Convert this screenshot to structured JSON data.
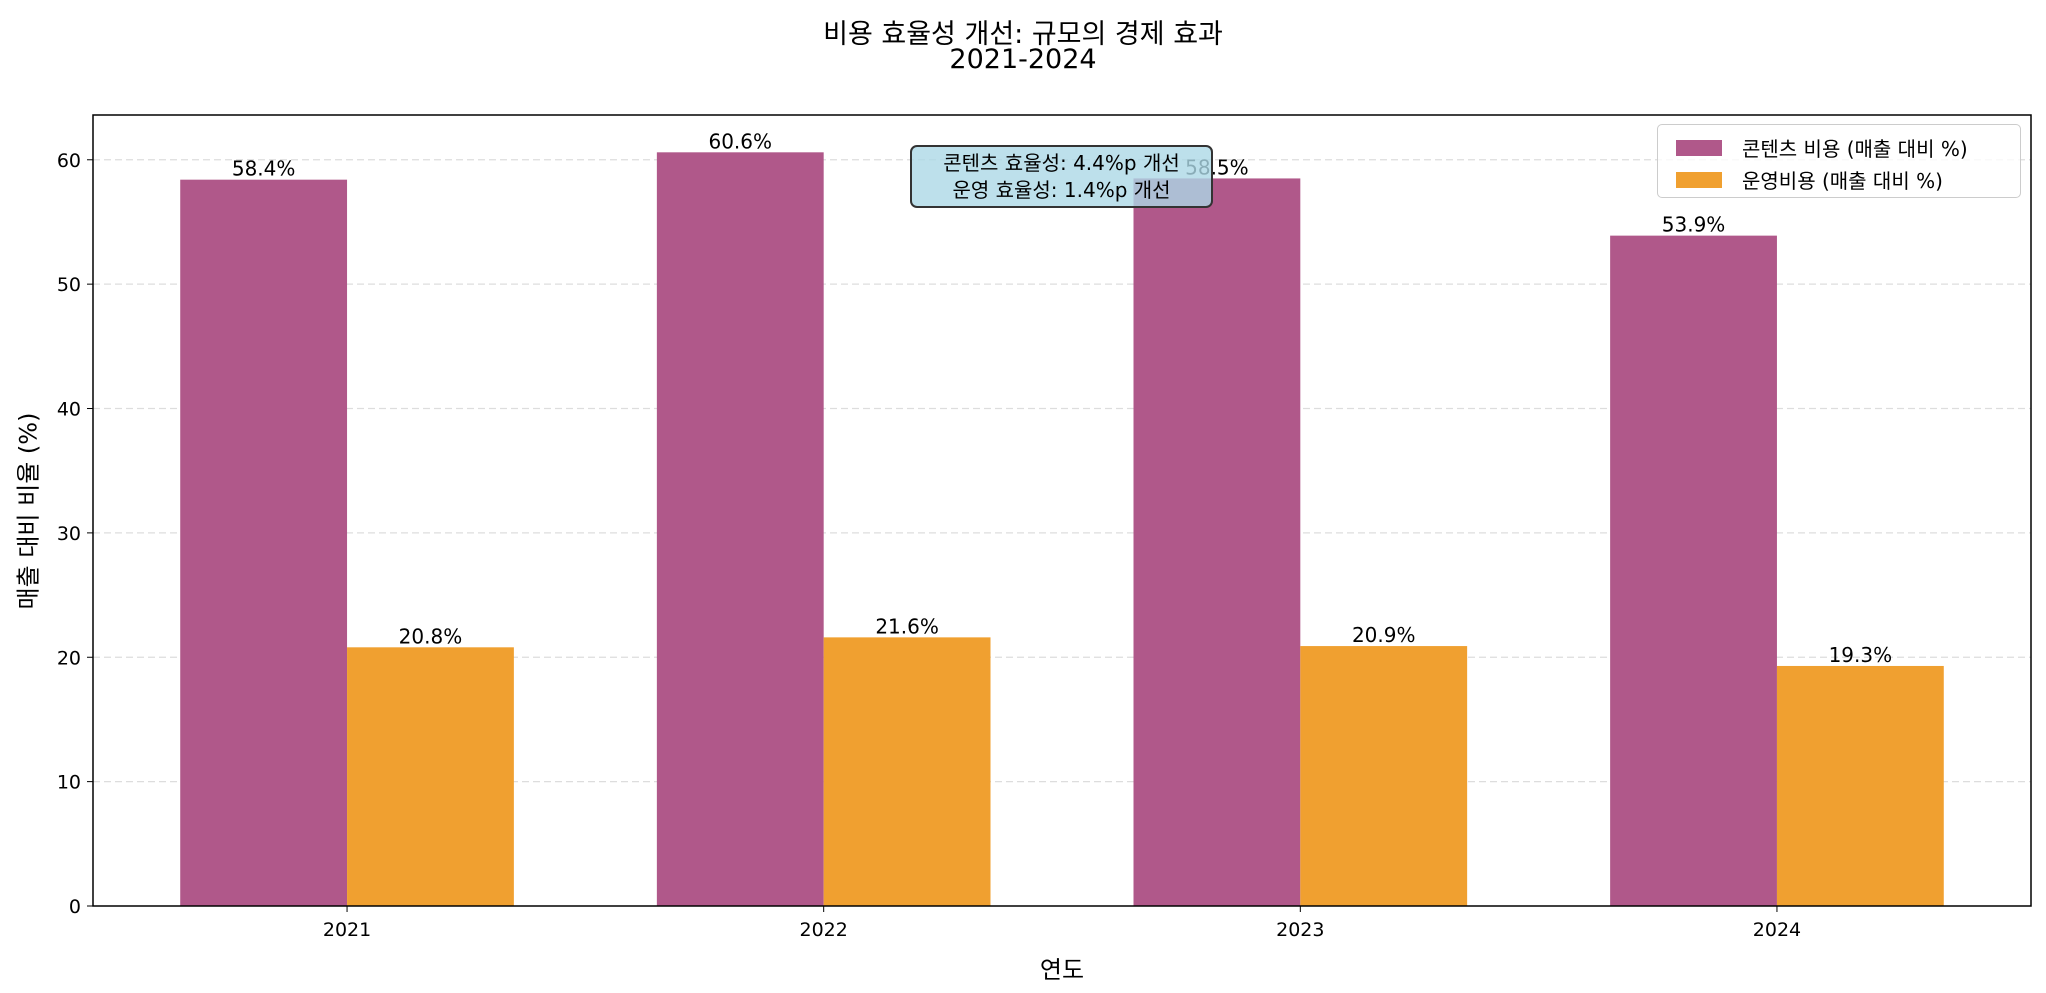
{
  "chart_data": {
    "type": "bar",
    "title": "비용 효율성 개선: 규모의 경제 효과",
    "subtitle": "2021-2024",
    "xlabel": "연도",
    "ylabel": "매출 대비 비율 (%)",
    "categories": [
      "2021",
      "2022",
      "2023",
      "2024"
    ],
    "series": [
      {
        "name": "콘텐츠 비용 (매출 대비 %)",
        "values": [
          58.4,
          60.6,
          58.5,
          53.9
        ],
        "labels": [
          "58.4%",
          "60.6%",
          "58.5%",
          "53.9%"
        ],
        "color": "#b0588a"
      },
      {
        "name": "운영비용 (매출 대비 %)",
        "values": [
          20.8,
          21.6,
          20.9,
          19.3
        ],
        "labels": [
          "20.8%",
          "21.6%",
          "20.9%",
          "19.3%"
        ],
        "color": "#f0a030"
      }
    ],
    "ylim": [
      0,
      63.6
    ],
    "yticks": [
      "0",
      "10",
      "20",
      "30",
      "40",
      "50",
      "60"
    ],
    "grid": "y dashed",
    "legend": "top-right",
    "annotation": [
      "콘텐츠 효율성: 4.4%p 개선",
      "운영 효율성: 1.4%p 개선"
    ],
    "annotation_color": "#add8e6"
  }
}
